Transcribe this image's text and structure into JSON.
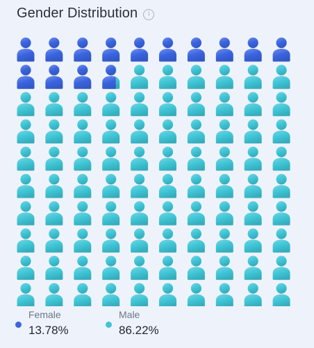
{
  "header": {
    "title": "Gender Distribution",
    "info_icon": "info-icon"
  },
  "chart_data": {
    "type": "pictogram",
    "grid": {
      "rows": 10,
      "cols": 10,
      "total_icons": 100
    },
    "icon": "person-icon",
    "series": [
      {
        "name": "Female",
        "value": 13.78,
        "value_label": "13.78%",
        "color": "#3a64e0"
      },
      {
        "name": "Male",
        "value": 86.22,
        "value_label": "86.22%",
        "color": "#3ec5d6"
      }
    ]
  }
}
